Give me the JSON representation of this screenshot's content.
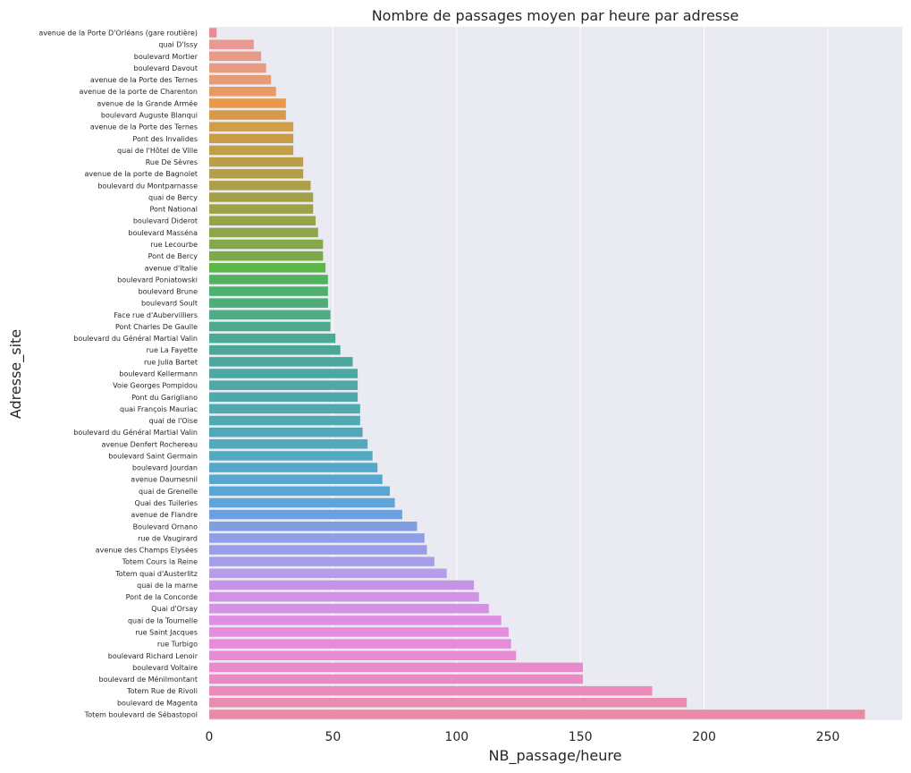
{
  "chart_data": {
    "type": "bar",
    "orientation": "horizontal",
    "title": "Nombre de passages moyen par heure par adresse",
    "xlabel": "NB_passage/heure",
    "ylabel": "Adresse_site",
    "xlim": [
      0,
      280
    ],
    "xticks": [
      0,
      50,
      100,
      150,
      200,
      250
    ],
    "grid": true,
    "categories": [
      "avenue de la Porte D'Orléans (gare routière)",
      "quai D'Issy",
      "boulevard Mortier",
      "boulevard Davout",
      "avenue de la Porte des Ternes",
      "avenue de la porte de Charenton",
      "avenue de la Grande Armée",
      "boulevard Auguste Blanqui",
      "avenue de la  Porte des Ternes",
      "Pont des Invalides",
      "quai de l'Hôtel de Ville",
      "Rue De Sèvres",
      "avenue de la porte de Bagnolet",
      "boulevard du Montparnasse",
      "quai de Bercy",
      "Pont National",
      "boulevard Diderot",
      "boulevard Masséna",
      "rue Lecourbe",
      "Pont de Bercy",
      "avenue d'Italie",
      "boulevard Poniatowski",
      "boulevard Brune",
      "boulevard Soult",
      "Face rue d'Aubervilliers",
      "Pont Charles De Gaulle",
      "boulevard du Général Martial Valin",
      "rue La Fayette",
      "rue Julia Bartet",
      "boulevard Kellermann",
      "Voie Georges Pompidou",
      "Pont du Garigliano",
      "quai François Mauriac",
      "quai de l'Oise",
      "boulevard du Général Martial Valin",
      "avenue Denfert Rochereau",
      "boulevard Saint Germain",
      "boulevard Jourdan",
      "avenue Daumesnil",
      "quai de Grenelle",
      "Quai des Tuileries",
      "avenue de Flandre",
      "Boulevard Ornano",
      "rue de Vaugirard",
      "avenue des Champs Elysées",
      "Totem Cours la Reine",
      "Totem quai d'Austerlitz",
      "quai de la marne",
      "Pont de la Concorde",
      "Quai d'Orsay",
      "quai de la Tournelle",
      "rue Saint Jacques",
      "rue Turbigo",
      "boulevard Richard Lenoir",
      "boulevard Voltaire",
      "boulevard de Ménilmontant",
      "Totem Rue de Rivoli",
      "boulevard de Magenta",
      "Totem boulevard de Sébastopol"
    ],
    "values": [
      3,
      18,
      21,
      23,
      25,
      27,
      31,
      31,
      34,
      34,
      34,
      38,
      38,
      41,
      42,
      42,
      43,
      44,
      46,
      46,
      47,
      48,
      48,
      48,
      49,
      49,
      51,
      53,
      58,
      60,
      60,
      60,
      61,
      61,
      62,
      64,
      66,
      68,
      70,
      73,
      75,
      78,
      84,
      87,
      88,
      91,
      96,
      107,
      109,
      113,
      118,
      121,
      122,
      124,
      151,
      151,
      179,
      193,
      265
    ],
    "colors": [
      "#ea8a99",
      "#e99892",
      "#e89a88",
      "#e89b80",
      "#e89b77",
      "#e89a64",
      "#e89a4a",
      "#d89a48",
      "#d09d48",
      "#c89d48",
      "#c29e48",
      "#bb9f48",
      "#b49f48",
      "#ab9f48",
      "#a4a048",
      "#9da148",
      "#96a448",
      "#8ea648",
      "#85a948",
      "#7aab48",
      "#5db648",
      "#52b160",
      "#50b06d",
      "#4fae78",
      "#4ead82",
      "#4daa8c",
      "#4ca994",
      "#4da799",
      "#4da79c",
      "#4ea8a2",
      "#4fa8a6",
      "#4fa8aa",
      "#4fa9ae",
      "#50a9b3",
      "#51a9b8",
      "#52a9bd",
      "#53a8c2",
      "#54a8c8",
      "#55a7ce",
      "#57a6d6",
      "#60a4dc",
      "#6aa1e0",
      "#809ee1",
      "#909ee6",
      "#9a9ee8",
      "#a79ee8",
      "#b79de9",
      "#c594e7",
      "#cf92e6",
      "#d690e6",
      "#de8ee3",
      "#e38ce0",
      "#e68bd9",
      "#e88bd2",
      "#e98bca",
      "#e98bc2",
      "#ea8bb9",
      "#ea8baf",
      "#ea8ba5"
    ]
  }
}
